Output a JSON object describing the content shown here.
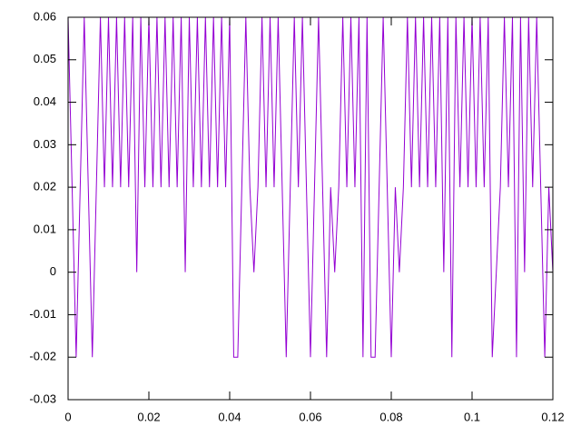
{
  "chart_data": {
    "type": "line",
    "x": [
      0,
      0.001,
      0.002,
      0.003,
      0.004,
      0.005,
      0.006,
      0.007,
      0.008,
      0.009,
      0.01,
      0.011,
      0.012,
      0.013,
      0.014,
      0.015,
      0.016,
      0.017,
      0.018,
      0.019,
      0.02,
      0.021,
      0.022,
      0.023,
      0.024,
      0.025,
      0.026,
      0.027,
      0.028,
      0.029,
      0.03,
      0.031,
      0.032,
      0.033,
      0.034,
      0.035,
      0.036,
      0.037,
      0.038,
      0.039,
      0.04,
      0.041,
      0.042,
      0.043,
      0.044,
      0.045,
      0.046,
      0.047,
      0.048,
      0.049,
      0.05,
      0.051,
      0.052,
      0.053,
      0.054,
      0.055,
      0.056,
      0.057,
      0.058,
      0.059,
      0.06,
      0.061,
      0.062,
      0.063,
      0.064,
      0.065,
      0.066,
      0.067,
      0.068,
      0.069,
      0.07,
      0.071,
      0.072,
      0.073,
      0.074,
      0.075,
      0.076,
      0.077,
      0.078,
      0.079,
      0.08,
      0.081,
      0.082,
      0.083,
      0.084,
      0.085,
      0.086,
      0.087,
      0.088,
      0.089,
      0.09,
      0.091,
      0.092,
      0.093,
      0.094,
      0.095,
      0.096,
      0.097,
      0.098,
      0.099,
      0.1,
      0.101,
      0.102,
      0.103,
      0.104,
      0.105,
      0.106,
      0.107,
      0.108,
      0.109,
      0.11,
      0.111,
      0.112,
      0.113,
      0.114,
      0.115,
      0.116,
      0.117,
      0.118,
      0.119,
      0.12
    ],
    "series": [
      {
        "color": "#9400d3",
        "values": [
          0.06,
          0.02,
          -0.02,
          0.02,
          0.06,
          0.02,
          -0.02,
          0.02,
          0.06,
          0.02,
          0.06,
          0.02,
          0.06,
          0.02,
          0.06,
          0.02,
          0.06,
          0,
          0.06,
          0.02,
          0.06,
          0.02,
          0.06,
          0.02,
          0.06,
          0.02,
          0.06,
          0.02,
          0.06,
          0,
          0.06,
          0.02,
          0.06,
          0.02,
          0.06,
          0.02,
          0.06,
          0.02,
          0.06,
          0.02,
          0.06,
          -0.02,
          -0.02,
          0.02,
          0.06,
          0.02,
          0,
          0.02,
          0.06,
          0.02,
          0.06,
          0.02,
          0.06,
          0.02,
          -0.02,
          0.02,
          0.06,
          0.02,
          0.06,
          0.02,
          -0.02,
          0.02,
          0.06,
          0.02,
          -0.02,
          0.02,
          0,
          0.02,
          0.06,
          0.02,
          0.06,
          0.02,
          0.06,
          -0.02,
          0.06,
          -0.02,
          -0.02,
          0.02,
          0.06,
          0.02,
          -0.02,
          0.02,
          0,
          0.02,
          0.06,
          0.02,
          0.06,
          0.02,
          0.06,
          0.02,
          0.06,
          0.02,
          0.06,
          0,
          0.06,
          -0.02,
          0.06,
          0.02,
          0.06,
          0.02,
          0.06,
          0.02,
          0.06,
          0.02,
          0.06,
          -0.02,
          0,
          0.02,
          0.06,
          0.02,
          0.06,
          -0.02,
          0.06,
          0,
          0.06,
          0.02,
          0.06,
          0.02,
          -0.02,
          0.02,
          0
        ]
      }
    ],
    "xlim": [
      0,
      0.12
    ],
    "xticks": [
      0,
      0.02,
      0.04,
      0.06,
      0.08,
      0.1,
      0.12
    ],
    "ylim": [
      -0.03,
      0.06
    ],
    "yticks": [
      -0.03,
      -0.02,
      -0.01,
      0,
      0.01,
      0.02,
      0.03,
      0.04,
      0.05,
      0.06
    ]
  }
}
